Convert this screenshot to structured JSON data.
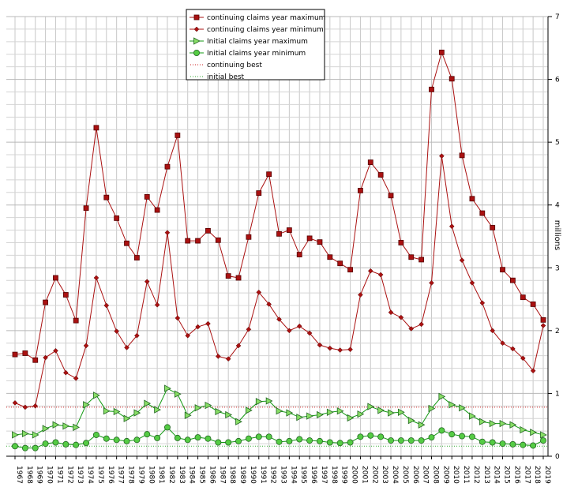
{
  "chart_data": {
    "type": "line",
    "title": "",
    "xlabel": "",
    "ylabel": "millions",
    "ylim": [
      0,
      7
    ],
    "yticks": [
      "0",
      "1",
      "2",
      "3",
      "4",
      "5",
      "6",
      "7"
    ],
    "grid": true,
    "legend_position": "top-center",
    "categories": [
      "1967",
      "1968",
      "1969",
      "1970",
      "1971",
      "1972",
      "1973",
      "1974",
      "1975",
      "1976",
      "1977",
      "1978",
      "1979",
      "1980",
      "1981",
      "1982",
      "1983",
      "1984",
      "1985",
      "1986",
      "1987",
      "1988",
      "1989",
      "1990",
      "1991",
      "1992",
      "1993",
      "1994",
      "1995",
      "1996",
      "1997",
      "1998",
      "1999",
      "2000",
      "2001",
      "2002",
      "2003",
      "2004",
      "2005",
      "2006",
      "2007",
      "2008",
      "2009",
      "2010",
      "2011",
      "2012",
      "2013",
      "2014",
      "2015",
      "2016",
      "2017",
      "2018",
      "2019"
    ],
    "series": [
      {
        "name": "continuing claims year maximum",
        "color": "#aa1111",
        "marker": "square",
        "values": [
          1.62,
          1.64,
          1.53,
          2.45,
          2.84,
          2.57,
          2.16,
          3.95,
          5.23,
          4.12,
          3.79,
          3.39,
          3.16,
          4.13,
          3.92,
          4.61,
          5.11,
          3.43,
          3.43,
          3.59,
          3.44,
          2.87,
          2.84,
          3.49,
          4.19,
          4.49,
          3.54,
          3.6,
          3.21,
          3.47,
          3.41,
          3.17,
          3.07,
          2.97,
          4.23,
          4.68,
          4.48,
          4.15,
          3.4,
          3.17,
          3.13,
          5.84,
          6.43,
          6.01,
          4.79,
          4.1,
          3.87,
          3.64,
          2.97,
          2.8,
          2.53,
          2.42,
          2.17
        ]
      },
      {
        "name": "continuing claims year minimum",
        "color": "#aa1111",
        "marker": "diamond",
        "values": [
          0.85,
          0.78,
          0.8,
          1.57,
          1.68,
          1.33,
          1.24,
          1.76,
          2.84,
          2.4,
          1.99,
          1.73,
          1.92,
          2.78,
          2.41,
          3.56,
          2.2,
          1.92,
          2.06,
          2.11,
          1.59,
          1.55,
          1.76,
          2.02,
          2.61,
          2.42,
          2.18,
          2.0,
          2.07,
          1.96,
          1.77,
          1.72,
          1.69,
          1.7,
          2.57,
          2.95,
          2.89,
          2.29,
          2.21,
          2.03,
          2.1,
          2.76,
          4.78,
          3.66,
          3.12,
          2.76,
          2.44,
          2.0,
          1.8,
          1.71,
          1.56,
          1.36,
          2.08
        ]
      },
      {
        "name": "Initial claims year maximum",
        "color": "#119911",
        "fill": "#88dd66",
        "marker": "triangle",
        "values": [
          0.34,
          0.36,
          0.34,
          0.44,
          0.5,
          0.48,
          0.46,
          0.82,
          0.97,
          0.72,
          0.71,
          0.6,
          0.69,
          0.84,
          0.74,
          1.08,
          0.99,
          0.65,
          0.77,
          0.81,
          0.71,
          0.66,
          0.55,
          0.73,
          0.87,
          0.88,
          0.72,
          0.69,
          0.62,
          0.64,
          0.66,
          0.7,
          0.72,
          0.61,
          0.67,
          0.79,
          0.73,
          0.69,
          0.7,
          0.57,
          0.5,
          0.76,
          0.95,
          0.82,
          0.77,
          0.64,
          0.55,
          0.52,
          0.52,
          0.5,
          0.42,
          0.38,
          0.34
        ]
      },
      {
        "name": "Initial claims year minimum",
        "color": "#119911",
        "fill": "#55cc44",
        "marker": "circle",
        "values": [
          0.16,
          0.13,
          0.13,
          0.2,
          0.22,
          0.19,
          0.18,
          0.21,
          0.34,
          0.28,
          0.26,
          0.24,
          0.26,
          0.35,
          0.29,
          0.46,
          0.29,
          0.26,
          0.3,
          0.28,
          0.22,
          0.22,
          0.24,
          0.28,
          0.31,
          0.31,
          0.23,
          0.24,
          0.27,
          0.25,
          0.24,
          0.22,
          0.21,
          0.22,
          0.31,
          0.33,
          0.31,
          0.25,
          0.25,
          0.25,
          0.25,
          0.3,
          0.41,
          0.35,
          0.32,
          0.31,
          0.23,
          0.22,
          0.2,
          0.19,
          0.18,
          0.17,
          0.25
        ]
      },
      {
        "name": "continuing best",
        "color": "#cc2222",
        "style": "dotted",
        "constant": 0.78
      },
      {
        "name": "initial best",
        "color": "#33aa33",
        "style": "dotted",
        "constant": 0.16
      }
    ]
  }
}
